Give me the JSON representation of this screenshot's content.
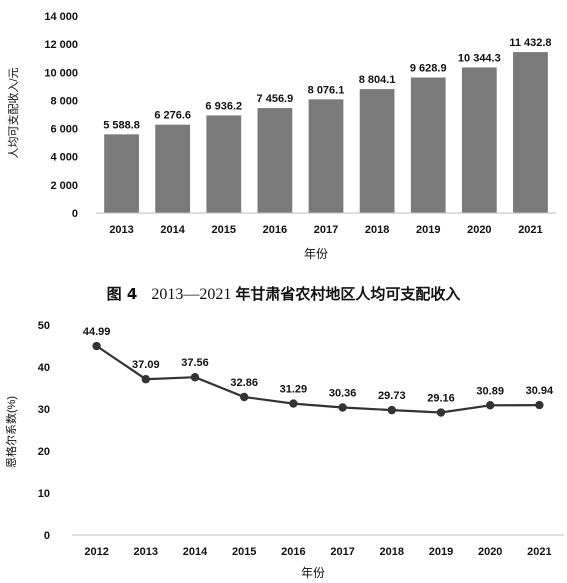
{
  "figure_caption": {
    "number": "图 4",
    "years": "2013—2021",
    "text": "年甘肃省农村地区人均可支配收入"
  },
  "chart_data": [
    {
      "type": "bar",
      "title": "",
      "xlabel": "年份",
      "ylabel": "人均可支配收入/元",
      "categories": [
        "2013",
        "2014",
        "2015",
        "2016",
        "2017",
        "2018",
        "2019",
        "2020",
        "2021"
      ],
      "values": [
        5588.8,
        6276.6,
        6936.2,
        7456.9,
        8076.1,
        8804.1,
        9628.9,
        10344.3,
        11432.8
      ],
      "value_labels": [
        "5 588.8",
        "6 276.6",
        "6 936.2",
        "7 456.9",
        "8 076.1",
        "8 804.1",
        "9 628.9",
        "10 344.3",
        "11 432.8"
      ],
      "ylim": [
        0,
        14000
      ],
      "yticks": [
        0,
        2000,
        4000,
        6000,
        8000,
        10000,
        12000,
        14000
      ],
      "ytick_labels": [
        "0",
        "2 000",
        "4 000",
        "6 000",
        "8 000",
        "10 000",
        "12 000",
        "14 000"
      ],
      "grid": false,
      "bar_color": "#7a7a7a"
    },
    {
      "type": "line",
      "title": "",
      "xlabel": "年份",
      "ylabel": "恩格尔系数(%)",
      "x": [
        "2012",
        "2013",
        "2014",
        "2015",
        "2016",
        "2017",
        "2018",
        "2019",
        "2020",
        "2021"
      ],
      "values": [
        44.99,
        37.09,
        37.56,
        32.86,
        31.29,
        30.36,
        29.73,
        29.16,
        30.89,
        30.94
      ],
      "value_labels": [
        "44.99",
        "37.09",
        "37.56",
        "32.86",
        "31.29",
        "30.36",
        "29.73",
        "29.16",
        "30.89",
        "30.94"
      ],
      "ylim": [
        0,
        50
      ],
      "yticks": [
        0,
        10,
        20,
        30,
        40,
        50
      ],
      "grid": false,
      "line_color": "#333333"
    }
  ]
}
